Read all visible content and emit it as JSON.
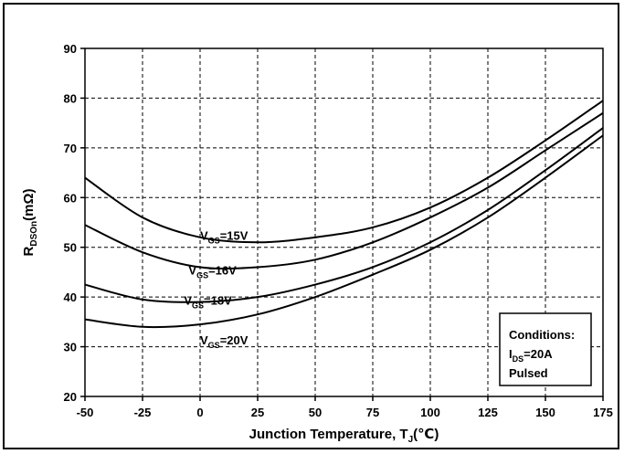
{
  "chart_data": {
    "type": "line",
    "xlabel": {
      "main": "Junction Temperature, T",
      "sub": "J",
      "unit": "(℃)"
    },
    "ylabel": {
      "main": "R",
      "sub": "DSOn",
      "unit": "(mΩ)"
    },
    "xlim": [
      -50,
      175
    ],
    "ylim": [
      20,
      90
    ],
    "x_ticks": [
      "-50",
      "-25",
      "0",
      "25",
      "50",
      "75",
      "100",
      "125",
      "150",
      "175"
    ],
    "y_ticks": [
      "20",
      "30",
      "40",
      "50",
      "60",
      "70",
      "80",
      "90"
    ],
    "grid": true,
    "x": [
      -50,
      -25,
      0,
      25,
      50,
      75,
      100,
      125,
      150,
      175
    ],
    "series": [
      {
        "name_main": "V",
        "name_sub": "GS",
        "name_rest": "=15V",
        "label_at": [
          0,
          51.5
        ],
        "values": [
          64,
          56,
          52,
          51,
          52,
          54,
          58,
          64,
          71.5,
          79.5
        ]
      },
      {
        "name_main": "V",
        "name_sub": "GS",
        "name_rest": "=16V",
        "label_at": [
          -5,
          44.5
        ],
        "values": [
          54.5,
          49,
          46,
          46,
          47.5,
          51,
          56,
          62,
          69.5,
          77
        ]
      },
      {
        "name_main": "V",
        "name_sub": "GS",
        "name_rest": "=18V",
        "label_at": [
          -7,
          38.5
        ],
        "values": [
          42.5,
          39.5,
          39,
          40,
          42.5,
          46,
          51,
          57.5,
          65.5,
          74
        ]
      },
      {
        "name_main": "V",
        "name_sub": "GS",
        "name_rest": "=20V",
        "label_at": [
          0,
          30.5
        ],
        "values": [
          35.5,
          34,
          34.5,
          36.5,
          40,
          44.5,
          49.5,
          56,
          64,
          72.5
        ]
      }
    ],
    "conditions": {
      "title": "Conditions:",
      "line2_main": "I",
      "line2_sub": "DS",
      "line2_rest": "=20A",
      "line3": "Pulsed"
    },
    "line_color": "#000000",
    "grid_color": "#000000"
  }
}
